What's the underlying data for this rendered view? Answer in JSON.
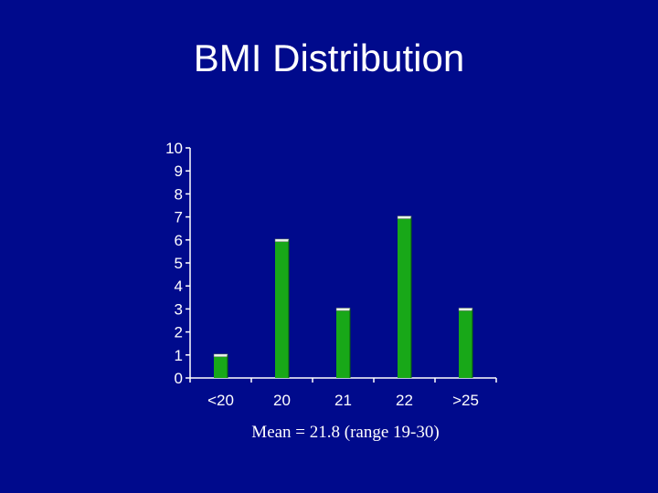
{
  "slide": {
    "title": "BMI Distribution",
    "caption": "Mean = 21.8 (range 19-30)"
  },
  "colors": {
    "background": "#000a8c",
    "bar": "#18a818",
    "bar_top": "#e8f4e8",
    "axis": "#ffffff",
    "text": "#ffffff"
  },
  "chart_data": {
    "type": "bar",
    "categories": [
      "<20",
      "20",
      "21",
      "22",
      ">25"
    ],
    "values": [
      1,
      6,
      3,
      7,
      3
    ],
    "title": "",
    "xlabel": "",
    "ylabel": "",
    "ylim": [
      0,
      10
    ],
    "yticks": [
      0,
      1,
      2,
      3,
      4,
      5,
      6,
      7,
      8,
      9,
      10
    ],
    "grid": false,
    "legend": "none"
  }
}
